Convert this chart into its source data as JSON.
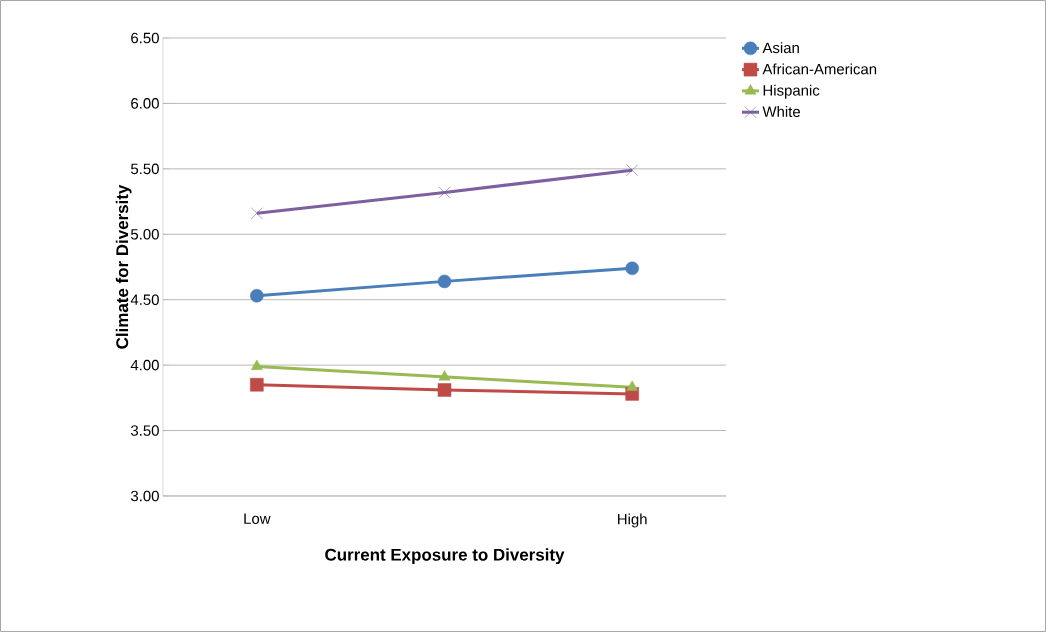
{
  "chart_data": {
    "type": "line",
    "xlabel": "Current Exposure to Diversity",
    "ylabel": "Climate for Diversity",
    "categories": [
      "Low",
      null,
      "High"
    ],
    "series": [
      {
        "name": "Asian",
        "color": "#4a7ebb",
        "marker": "circle",
        "values": [
          4.53,
          4.64,
          4.74
        ]
      },
      {
        "name": "African-American",
        "color": "#be4b48",
        "marker": "square",
        "values": [
          3.85,
          3.81,
          3.78
        ]
      },
      {
        "name": "Hispanic",
        "color": "#98b954",
        "marker": "triangle",
        "values": [
          3.99,
          3.91,
          3.83
        ]
      },
      {
        "name": "White",
        "color": "#7d60a0",
        "marker": "cross",
        "values": [
          5.16,
          5.32,
          5.49
        ]
      }
    ],
    "ylim": [
      3,
      6.5
    ],
    "yticks": [
      {
        "value": 3,
        "label": "3.00"
      },
      {
        "value": 3.5,
        "label": "3.50"
      },
      {
        "value": 4,
        "label": "4.00"
      },
      {
        "value": 4.5,
        "label": "4.50"
      },
      {
        "value": 5,
        "label": "5.00"
      },
      {
        "value": 5.5,
        "label": "5.50"
      },
      {
        "value": 6,
        "label": "6.00"
      },
      {
        "value": 6.5,
        "label": "6.50"
      }
    ],
    "grid": "y",
    "legend": "top right",
    "line_style": "solid"
  }
}
